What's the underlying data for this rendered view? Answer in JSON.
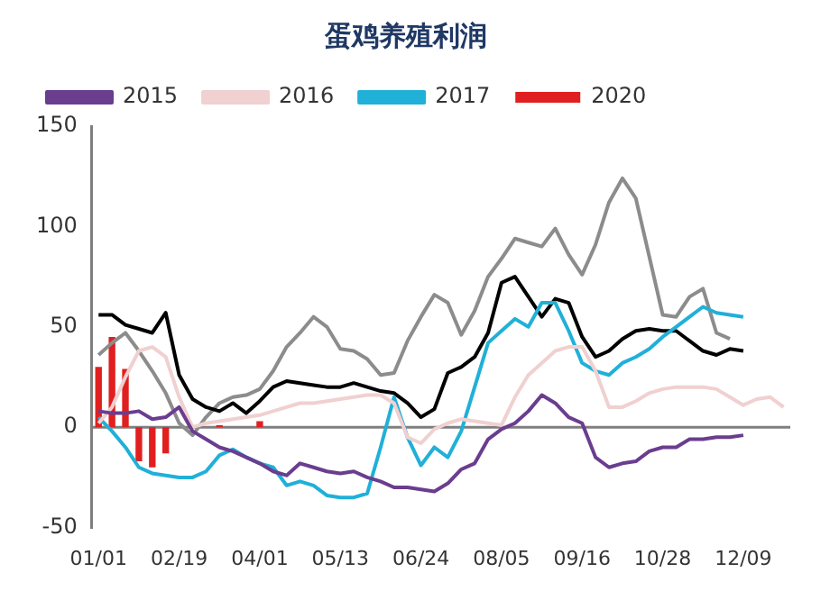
{
  "chart_data": {
    "type": "line",
    "title": "蛋鸡养殖利润",
    "categories": [
      "01/01",
      null,
      null,
      null,
      null,
      null,
      "02/19",
      null,
      null,
      null,
      null,
      null,
      "04/01",
      null,
      null,
      null,
      null,
      null,
      "05/13",
      null,
      null,
      null,
      null,
      null,
      "06/24",
      null,
      null,
      null,
      null,
      null,
      "08/05",
      null,
      null,
      null,
      null,
      null,
      "09/16",
      null,
      null,
      null,
      null,
      null,
      "10/28",
      null,
      null,
      null,
      null,
      null,
      "12/09",
      null,
      null,
      null
    ],
    "ylim": [
      -50,
      150
    ],
    "yticks": [
      -50,
      0,
      50,
      100,
      150
    ],
    "legend": "top left",
    "ref_lines": [
      {
        "axis": "y",
        "value": 0,
        "color": "#7f7f7f"
      }
    ],
    "series": [
      {
        "name": "2020",
        "type": "bar",
        "color": "#e02020",
        "values": [
          30,
          45,
          29,
          -17,
          -20,
          -13,
          null,
          null,
          null,
          1,
          null,
          null,
          3,
          null,
          null,
          null,
          null,
          null,
          null,
          null,
          null,
          null,
          null,
          null,
          null,
          null,
          null,
          null,
          null,
          null,
          null,
          null,
          null,
          null,
          null,
          null,
          null,
          null,
          null,
          null,
          null,
          null,
          null,
          null,
          null,
          null,
          null,
          null,
          null,
          null,
          null,
          null
        ]
      },
      {
        "name": "2015",
        "color": "#6a3d8f",
        "values": [
          8,
          7,
          7,
          8,
          4,
          5,
          10,
          -2,
          -6,
          -10,
          -12,
          -15,
          -18,
          -22,
          -24,
          -18,
          -20,
          -22,
          -23,
          -22,
          -25,
          -27,
          -30,
          -30,
          -31,
          -32,
          -28,
          -21,
          -18,
          -6,
          -1,
          2,
          8,
          16,
          12,
          5,
          2,
          -15,
          -20,
          -18,
          -17,
          -12,
          -10,
          -10,
          -6,
          -6,
          -5,
          -5,
          -4,
          null,
          null,
          null
        ]
      },
      {
        "name": "2016",
        "color": "#f0d0d0",
        "values": [
          2,
          10,
          25,
          38,
          40,
          35,
          15,
          0,
          2,
          3,
          4,
          5,
          6,
          8,
          10,
          12,
          12,
          13,
          14,
          15,
          16,
          16,
          12,
          -5,
          -8,
          -1,
          2,
          4,
          3,
          2,
          1,
          15,
          26,
          32,
          38,
          40,
          40,
          28,
          10,
          10,
          13,
          17,
          19,
          20,
          20,
          20,
          19,
          15,
          11,
          14,
          15,
          10
        ]
      },
      {
        "name": "2017",
        "color": "#20b0d8",
        "values": [
          5,
          -2,
          -10,
          -20,
          -23,
          -24,
          -25,
          -25,
          -22,
          -14,
          -11,
          -15,
          -18,
          -20,
          -29,
          -27,
          -29,
          -34,
          -35,
          -35,
          -33,
          -10,
          15,
          -5,
          -19,
          -10,
          -15,
          -2,
          20,
          42,
          48,
          54,
          50,
          62,
          62,
          48,
          32,
          28,
          26,
          32,
          35,
          39,
          45,
          50,
          55,
          60,
          57,
          56,
          55,
          null,
          null,
          null
        ]
      },
      {
        "color": "#000000",
        "values": [
          56,
          56,
          51,
          49,
          47,
          57,
          26,
          14,
          10,
          8,
          12,
          7,
          13,
          20,
          23,
          22,
          21,
          20,
          20,
          22,
          20,
          18,
          17,
          12,
          5,
          9,
          27,
          30,
          35,
          47,
          72,
          75,
          65,
          55,
          64,
          62,
          45,
          35,
          38,
          44,
          48,
          49,
          48,
          48,
          43,
          38,
          36,
          39,
          38,
          null,
          null,
          null
        ]
      },
      {
        "color": "#8c8c8c",
        "values": [
          36,
          42,
          47,
          38,
          28,
          17,
          2,
          -4,
          5,
          12,
          15,
          16,
          19,
          28,
          40,
          47,
          55,
          50,
          39,
          38,
          34,
          26,
          27,
          43,
          55,
          66,
          62,
          46,
          58,
          75,
          84,
          94,
          92,
          90,
          99,
          86,
          76,
          91,
          112,
          124,
          114,
          85,
          56,
          55,
          65,
          69,
          47,
          44,
          null,
          null,
          null,
          null
        ]
      }
    ]
  }
}
